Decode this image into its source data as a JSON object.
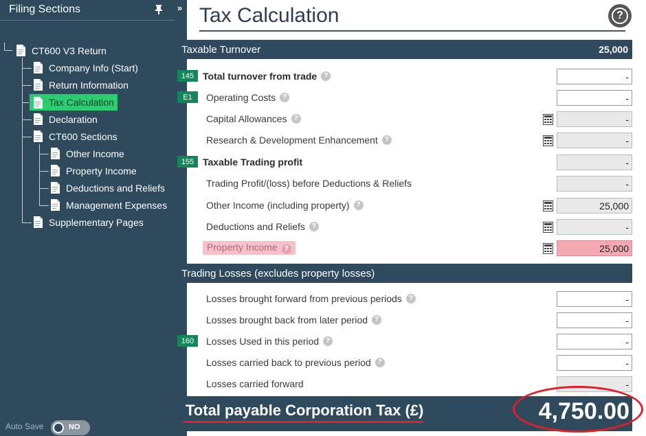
{
  "sidebar": {
    "title": "Filing Sections",
    "tree": {
      "root": "CT600 V3 Return",
      "items": [
        {
          "label": "Company Info (Start)"
        },
        {
          "label": "Return Information"
        },
        {
          "label": "Tax Calculation",
          "active": true
        },
        {
          "label": "Declaration"
        },
        {
          "label": "CT600 Sections"
        },
        {
          "label": "Other Income"
        },
        {
          "label": "Property Income"
        },
        {
          "label": "Deductions and Reliefs"
        },
        {
          "label": "Management Expenses"
        },
        {
          "label": "Supplementary Pages"
        }
      ]
    },
    "autosave": {
      "label": "Auto Save",
      "state": "NO"
    }
  },
  "collapse_glyph": "»",
  "page": {
    "title": "Tax Calculation",
    "help_glyph": "?"
  },
  "sections": {
    "turnover": {
      "title": "Taxable Turnover",
      "value": "25,000",
      "rows": [
        {
          "badge": "145",
          "label": "Total turnover from trade",
          "value": "-"
        },
        {
          "badge": "E1",
          "label": "Operating Costs",
          "value": "-"
        },
        {
          "label": "Capital Allowances",
          "value": "-"
        },
        {
          "label": "Research & Development Enhancement",
          "value": "-"
        },
        {
          "badge": "155",
          "label": "Taxable Trading profit",
          "value": "-"
        },
        {
          "label": "Trading Profit/(loss) before Deductions & Reliefs",
          "value": "-"
        },
        {
          "label": "Other Income (including property)",
          "value": "25,000"
        },
        {
          "label": "Deductions and Reliefs",
          "value": "-"
        },
        {
          "label": "Property Income",
          "value": "25,000"
        }
      ]
    },
    "losses": {
      "title": "Trading Losses (excludes property losses)",
      "rows": [
        {
          "label": "Losses brought forward from previous periods",
          "value": "-"
        },
        {
          "label": "Losses brought back from later period",
          "value": "-"
        },
        {
          "badge": "160",
          "label": "Losses Used in this period",
          "value": "-"
        },
        {
          "label": "Losses carried back to previous period",
          "value": "-"
        },
        {
          "label": "Losses carried forward",
          "value": "-"
        }
      ]
    }
  },
  "total": {
    "label": "Total payable Corporation Tax (£)",
    "value": "4,750.00"
  },
  "colors": {
    "sidebar_bg": "#2f4a5d",
    "active_item": "#2ecc71",
    "badge": "#15855a",
    "highlight_pink": "#f4a8b2",
    "annotation_red": "#e0202a"
  }
}
